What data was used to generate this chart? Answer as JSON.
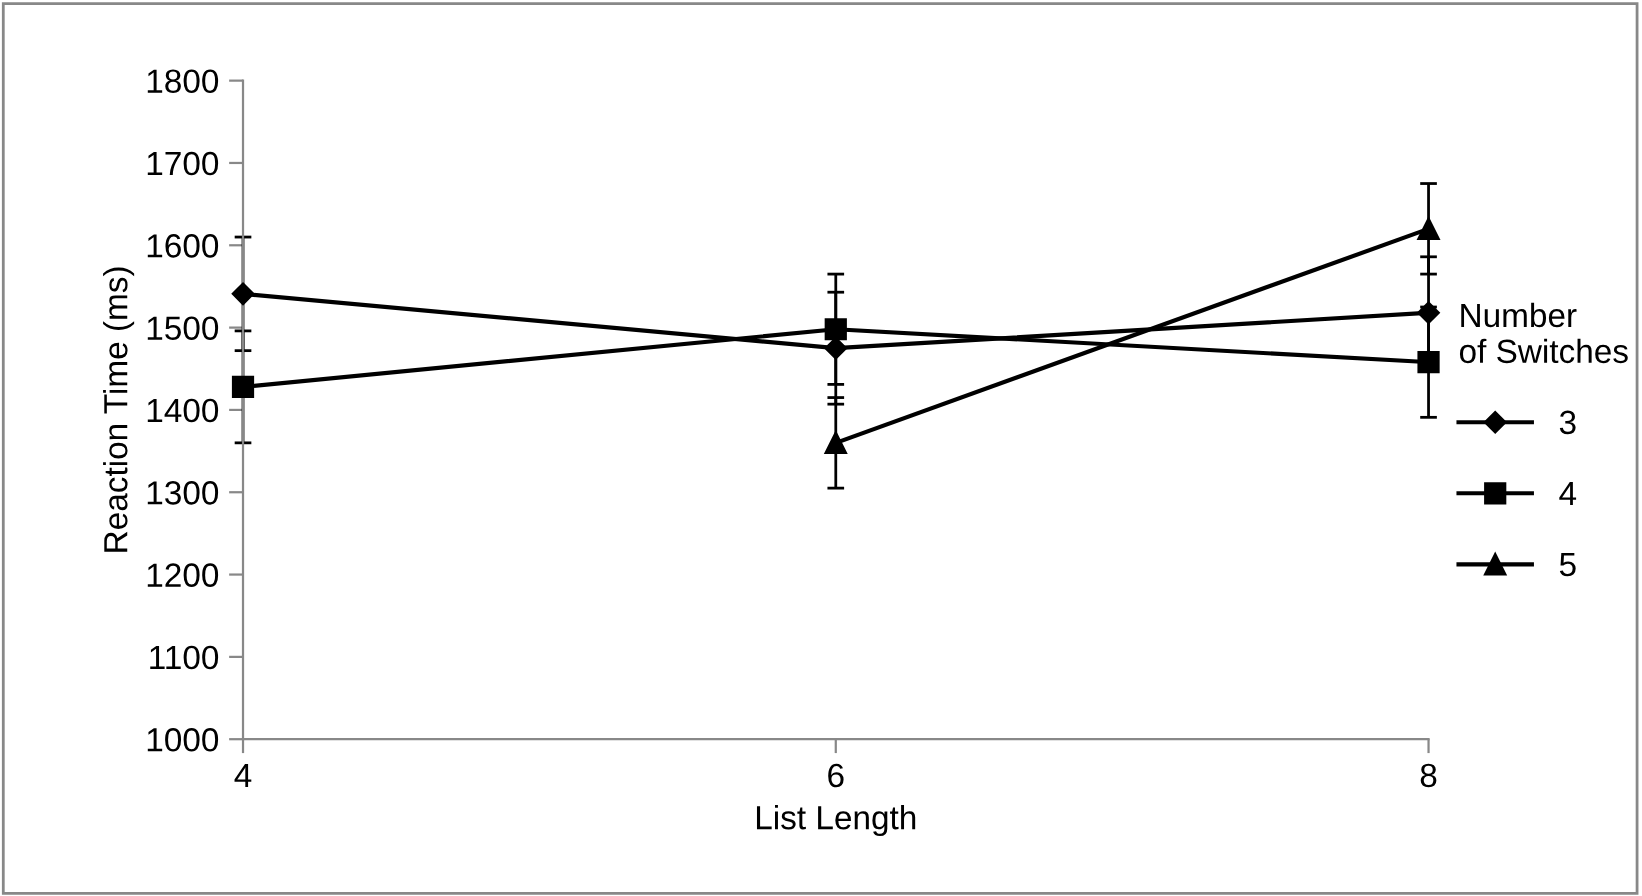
{
  "chart_data": {
    "type": "line",
    "xlabel": "List Length",
    "ylabel": "Reaction Time (ms)",
    "legend_title": "Number\nof Switches",
    "x": [
      4,
      6,
      8
    ],
    "xlim": [
      4,
      8
    ],
    "xticks": [
      4,
      6,
      8
    ],
    "ylim": [
      1000,
      1800
    ],
    "yticks": [
      1000,
      1100,
      1200,
      1300,
      1400,
      1500,
      1600,
      1700,
      1800
    ],
    "grid": false,
    "legend": "right",
    "line_style": "solid",
    "series": [
      {
        "name": "3",
        "color": "#000000",
        "marker": "diamond",
        "values": [
          1541,
          1475,
          1518
        ],
        "errors": [
          69,
          68,
          68
        ]
      },
      {
        "name": "4",
        "color": "#000000",
        "marker": "square",
        "values": [
          1428,
          1498,
          1458
        ],
        "errors": [
          68,
          67,
          67
        ]
      },
      {
        "name": "5",
        "color": "#000000",
        "marker": "triangle",
        "values": [
          null,
          1360,
          1620
        ],
        "errors": [
          null,
          55,
          55
        ]
      }
    ]
  }
}
